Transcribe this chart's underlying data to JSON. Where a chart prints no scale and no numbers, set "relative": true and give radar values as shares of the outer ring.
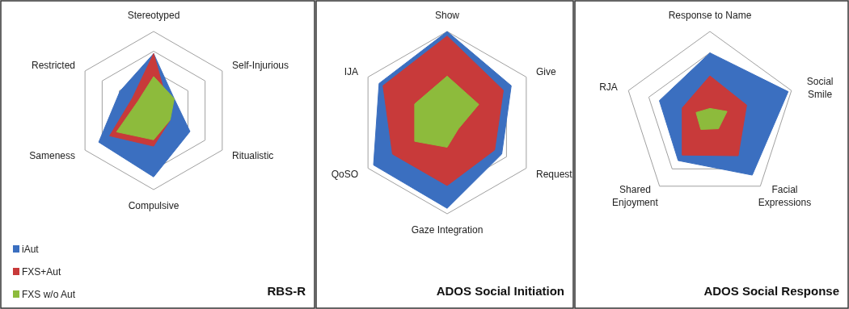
{
  "chart_data": [
    {
      "type": "radar",
      "title": "RBS-R",
      "relative": true,
      "grid": true,
      "legend": "bottom left",
      "categories": [
        "Stereotyped",
        "Self-Injurious",
        "Ritualistic",
        "Compulsive",
        "Sameness",
        "Restricted"
      ],
      "series": [
        {
          "name": "iAut",
          "color": "#3b6fc0",
          "values": [
            0.72,
            0.3,
            0.53,
            0.84,
            0.8,
            0.49
          ]
        },
        {
          "name": "FXS+Aut",
          "color": "#c83a3a",
          "values": [
            0.72,
            0.2,
            0.24,
            0.45,
            0.64,
            0.31
          ]
        },
        {
          "name": "FXS w/o Aut",
          "color": "#8dbb3c",
          "values": [
            0.43,
            0.3,
            0.24,
            0.37,
            0.54,
            0.23
          ]
        }
      ]
    },
    {
      "type": "radar",
      "title": "ADOS Social Initiation",
      "relative": true,
      "grid": true,
      "categories": [
        "Show",
        "Give",
        "Request",
        "Gaze Integration",
        "QoSO",
        "IJA"
      ],
      "series": [
        {
          "color": "#3b6fc0",
          "values": [
            1.0,
            0.81,
            0.69,
            0.94,
            0.93,
            0.86
          ]
        },
        {
          "color": "#c83a3a",
          "values": [
            0.95,
            0.71,
            0.6,
            0.69,
            0.69,
            0.81
          ]
        },
        {
          "color": "#8dbb3c",
          "values": [
            0.51,
            0.4,
            0.14,
            0.27,
            0.41,
            0.41
          ]
        }
      ]
    },
    {
      "type": "radar",
      "title": "ADOS Social Response",
      "relative": true,
      "grid": true,
      "categories": [
        "Response to Name",
        "Social Smile",
        "Facial Expressions",
        "Shared Enjoyment",
        "RJA"
      ],
      "series": [
        {
          "color": "#3b6fc0",
          "values": [
            0.75,
            0.96,
            0.84,
            0.63,
            0.62
          ]
        },
        {
          "color": "#c83a3a",
          "values": [
            0.48,
            0.45,
            0.56,
            0.55,
            0.34
          ]
        },
        {
          "color": "#8dbb3c",
          "values": [
            0.1,
            0.21,
            0.17,
            0.18,
            0.17
          ]
        }
      ]
    }
  ]
}
